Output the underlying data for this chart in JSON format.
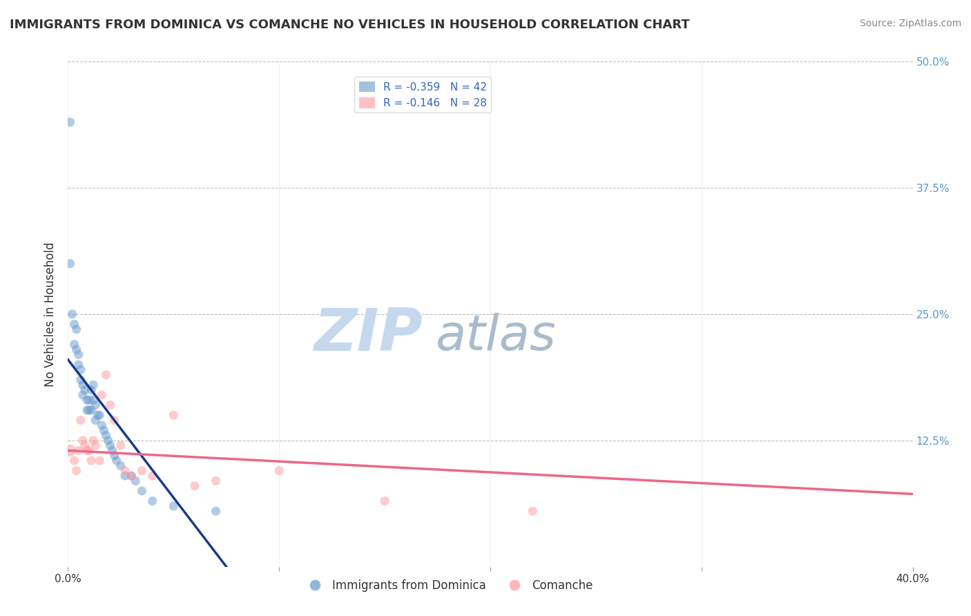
{
  "title": "IMMIGRANTS FROM DOMINICA VS COMANCHE NO VEHICLES IN HOUSEHOLD CORRELATION CHART",
  "source_text": "Source: ZipAtlas.com",
  "ylabel": "No Vehicles in Household",
  "xlim": [
    0.0,
    0.4
  ],
  "ylim": [
    0.0,
    0.5
  ],
  "xtick_values": [
    0.0,
    0.1,
    0.2,
    0.3,
    0.4
  ],
  "xtick_labels": [
    "0.0%",
    "",
    "",
    "",
    "40.0%"
  ],
  "ytick_values": [
    0.125,
    0.25,
    0.375,
    0.5
  ],
  "ytick_right_labels": [
    "12.5%",
    "25.0%",
    "37.5%",
    "50.0%"
  ],
  "legend_blue_label": "R = -0.359   N = 42",
  "legend_pink_label": "R = -0.146   N = 28",
  "legend_bottom_blue": "Immigrants from Dominica",
  "legend_bottom_pink": "Comanche",
  "blue_color": "#6699CC",
  "pink_color": "#FF9999",
  "blue_line_color": "#1A3A8A",
  "pink_line_color": "#EE6688",
  "watermark_zip": "ZIP",
  "watermark_atlas": "atlas",
  "watermark_color_zip": "#C5D8EE",
  "watermark_color_atlas": "#AABBCC",
  "background_color": "#FFFFFF",
  "grid_color": "#BBBBBB",
  "blue_scatter_x": [
    0.001,
    0.001,
    0.002,
    0.003,
    0.003,
    0.004,
    0.004,
    0.005,
    0.005,
    0.006,
    0.006,
    0.007,
    0.007,
    0.008,
    0.009,
    0.009,
    0.01,
    0.01,
    0.011,
    0.011,
    0.012,
    0.012,
    0.013,
    0.013,
    0.014,
    0.015,
    0.016,
    0.017,
    0.018,
    0.019,
    0.02,
    0.021,
    0.022,
    0.023,
    0.025,
    0.027,
    0.03,
    0.032,
    0.035,
    0.04,
    0.05,
    0.07
  ],
  "blue_scatter_y": [
    0.44,
    0.3,
    0.25,
    0.24,
    0.22,
    0.235,
    0.215,
    0.21,
    0.2,
    0.195,
    0.185,
    0.18,
    0.17,
    0.175,
    0.165,
    0.155,
    0.165,
    0.155,
    0.175,
    0.155,
    0.18,
    0.165,
    0.16,
    0.145,
    0.15,
    0.15,
    0.14,
    0.135,
    0.13,
    0.125,
    0.12,
    0.115,
    0.11,
    0.105,
    0.1,
    0.09,
    0.09,
    0.085,
    0.075,
    0.065,
    0.06,
    0.055
  ],
  "pink_scatter_x": [
    0.001,
    0.003,
    0.004,
    0.005,
    0.006,
    0.007,
    0.008,
    0.009,
    0.01,
    0.011,
    0.012,
    0.013,
    0.015,
    0.016,
    0.018,
    0.02,
    0.022,
    0.025,
    0.027,
    0.03,
    0.035,
    0.04,
    0.05,
    0.06,
    0.07,
    0.1,
    0.15,
    0.22
  ],
  "pink_scatter_y": [
    0.115,
    0.105,
    0.095,
    0.115,
    0.145,
    0.125,
    0.12,
    0.115,
    0.115,
    0.105,
    0.125,
    0.12,
    0.105,
    0.17,
    0.19,
    0.16,
    0.145,
    0.12,
    0.095,
    0.09,
    0.095,
    0.09,
    0.15,
    0.08,
    0.085,
    0.095,
    0.065,
    0.055
  ],
  "blue_line_x": [
    0.0,
    0.075
  ],
  "blue_line_y": [
    0.205,
    0.0
  ],
  "pink_line_x": [
    0.0,
    0.4
  ],
  "pink_line_y": [
    0.115,
    0.072
  ]
}
